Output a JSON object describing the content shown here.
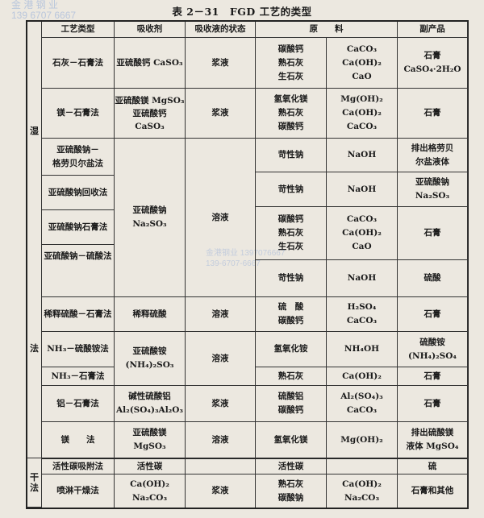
{
  "watermark": {
    "top": "金 港 钢 业\n139 6707 6667",
    "middle": "金港钢业 1397076667\n139-6707-6667"
  },
  "title": "表 2－31　FGD 工艺的类型",
  "headers": {
    "type": "工艺类型",
    "absorbent": "吸收剂",
    "state": "吸收液的状态",
    "materials": "原　　料",
    "byproduct": "副产品"
  },
  "categories": {
    "wet": [
      "湿",
      "法"
    ],
    "dry": [
      "干",
      "法"
    ]
  },
  "rows": [
    {
      "type": "石灰－石膏法",
      "absorbent": "亚硫酸钙 CaSO₃",
      "state": "浆液",
      "material": "碳酸钙\n熟石灰\n生石灰",
      "formula": "CaCO₃\nCa(OH)₂\nCaO",
      "byproduct": "石膏\nCaSO₄·2H₂O"
    },
    {
      "type": "镁－石膏法",
      "absorbent": "亚硫酸镁 MgSO₃\n亚硫酸钙\nCaSO₃",
      "state": "浆液",
      "material": "氢氧化镁\n熟石灰\n碳酸钙",
      "formula": "Mg(OH)₂\nCa(OH)₂\nCaCO₃",
      "byproduct": "石膏"
    },
    {
      "type": "亚硫酸钠－\n格劳贝尔盐法",
      "absorbent": "亚硫酸钠\nNa₂SO₃",
      "state": "溶液",
      "material": "苛性钠",
      "formula": "NaOH",
      "byproduct": "排出格劳贝\n尔盐液体"
    },
    {
      "type": "亚硫酸钠回收法",
      "material": "苛性钠",
      "formula": "NaOH",
      "byproduct": "亚硫酸钠\nNa₂SO₃"
    },
    {
      "type": "亚硫酸钠石膏法",
      "material": "碳酸钙\n熟石灰\n生石灰",
      "formula": "CaCO₃\nCa(OH)₂\nCaO",
      "byproduct": "石膏"
    },
    {
      "type": "亚硫酸钠－硫酸法",
      "material": "苛性钠",
      "formula": "NaOH",
      "byproduct": "硫酸"
    },
    {
      "type": "稀释硫酸－石膏法",
      "absorbent": "稀释硫酸",
      "state": "溶液",
      "material": "硫　酸\n碳酸钙",
      "formula": "H₂SO₄\nCaCO₃",
      "byproduct": "石膏"
    },
    {
      "type": "NH₃－硫酸铵法",
      "absorbent": "亚硫酸铵\n(NH₄)₂SO₃",
      "state": "溶液",
      "material": "氢氧化铵",
      "formula": "NH₄OH",
      "byproduct": "硫酸铵\n(NH₄)₂SO₄"
    },
    {
      "type": "NH₃－石膏法",
      "material": "熟石灰",
      "formula": "Ca(OH)₂",
      "byproduct": "石膏"
    },
    {
      "type": "铝－石膏法",
      "absorbent": "碱性硫酸铝\nAl₂(SO₄)₃Al₂O₃",
      "state": "浆液",
      "material": "硫酸铝\n碳酸钙",
      "formula": "Al₂(SO₄)₃\nCaCO₃",
      "byproduct": "石膏"
    },
    {
      "type": "镁　　法",
      "absorbent": "亚硫酸镁\nMgSO₃",
      "state": "溶液",
      "material": "氢氧化镁",
      "formula": "Mg(OH)₂",
      "byproduct": "排出硫酸镁\n液体 MgSO₄"
    },
    {
      "type": "活性碳吸附法",
      "absorbent": "活性碳",
      "state": "",
      "material": "活性碳",
      "formula": "",
      "byproduct": "硫"
    },
    {
      "type": "喷淋干燥法",
      "absorbent": "Ca(OH)₂\nNa₂CO₃",
      "state": "浆液",
      "material": "熟石灰\n碳酸钠",
      "formula": "Ca(OH)₂\nNa₂CO₃",
      "byproduct": "石膏和其他"
    }
  ]
}
